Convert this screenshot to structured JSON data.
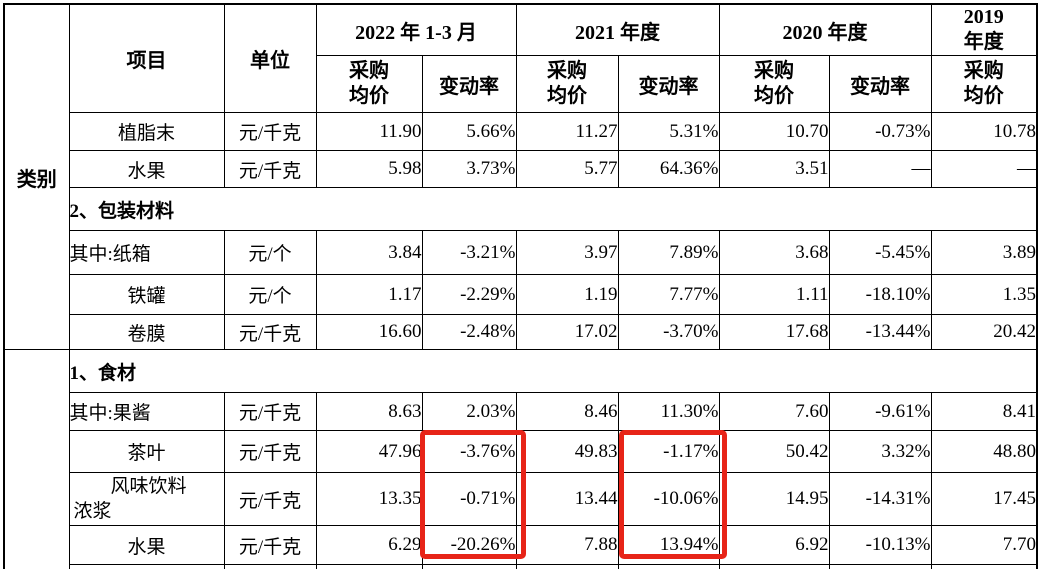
{
  "table": {
    "header": {
      "category": "类别",
      "item": "项目",
      "unit": "单位",
      "periods": [
        {
          "label": "2022 年 1-3 月",
          "subs": [
            "采购\n均价",
            "变动率"
          ]
        },
        {
          "label": "2021 年度",
          "subs": [
            "采购\n均价",
            "变动率"
          ]
        },
        {
          "label": "2020 年度",
          "subs": [
            "采购\n均价",
            "变动率"
          ]
        },
        {
          "label": "2019\n年度",
          "subs": [
            "采购\n均价"
          ]
        }
      ]
    },
    "rows": [
      {
        "type": "item",
        "item": "植脂末",
        "unit": "元/千克",
        "values": [
          "11.90",
          "5.66%",
          "11.27",
          "5.31%",
          "10.70",
          "-0.73%",
          "10.78"
        ]
      },
      {
        "type": "item",
        "item": "水果",
        "unit": "元/千克",
        "values": [
          "5.98",
          "3.73%",
          "5.77",
          "64.36%",
          "3.51",
          "—",
          "—"
        ]
      },
      {
        "type": "section",
        "label": "2、包装材料"
      },
      {
        "type": "item",
        "item": "其中:纸箱",
        "align": "left",
        "unit": "元/个",
        "values": [
          "3.84",
          "-3.21%",
          "3.97",
          "7.89%",
          "3.68",
          "-5.45%",
          "3.89"
        ]
      },
      {
        "type": "item",
        "item": "铁罐",
        "unit": "元/个",
        "values": [
          "1.17",
          "-2.29%",
          "1.19",
          "7.77%",
          "1.11",
          "-18.10%",
          "1.35"
        ]
      },
      {
        "type": "item",
        "item": "卷膜",
        "unit": "元/千克",
        "values": [
          "16.60",
          "-2.48%",
          "17.02",
          "-3.70%",
          "17.68",
          "-13.44%",
          "20.42"
        ]
      },
      {
        "type": "section",
        "label": "1、食材"
      },
      {
        "type": "item",
        "item": "其中:果酱",
        "align": "left",
        "unit": "元/千克",
        "values": [
          "8.63",
          "2.03%",
          "8.46",
          "11.30%",
          "7.60",
          "-9.61%",
          "8.41"
        ]
      },
      {
        "type": "item",
        "item": "茶叶",
        "unit": "元/千克",
        "values": [
          "47.96",
          "-3.76%",
          "49.83",
          "-1.17%",
          "50.42",
          "3.32%",
          "48.80"
        ]
      },
      {
        "type": "item",
        "item": "风味饮料",
        "item_line2": "浓浆",
        "unit": "元/千克",
        "values": [
          "13.35",
          "-0.71%",
          "13.44",
          "-10.06%",
          "14.95",
          "-14.31%",
          "17.45"
        ]
      },
      {
        "type": "item",
        "item": "水果",
        "unit": "元/千克",
        "values": [
          "6.29",
          "-20.26%",
          "7.88",
          "13.94%",
          "6.92",
          "-10.13%",
          "7.70"
        ]
      }
    ]
  },
  "annotations": {
    "highlight_color": "#e72418",
    "boxes": [
      {
        "column": "2022 年 1-3 月 变动率",
        "rows": [
          "茶叶",
          "风味饮料浓浆",
          "水果"
        ]
      },
      {
        "column": "2021 年度 变动率",
        "rows": [
          "茶叶",
          "风味饮料浓浆",
          "水果"
        ]
      }
    ]
  },
  "colors": {
    "border": "#000000",
    "text": "#000000",
    "background": "#ffffff"
  }
}
